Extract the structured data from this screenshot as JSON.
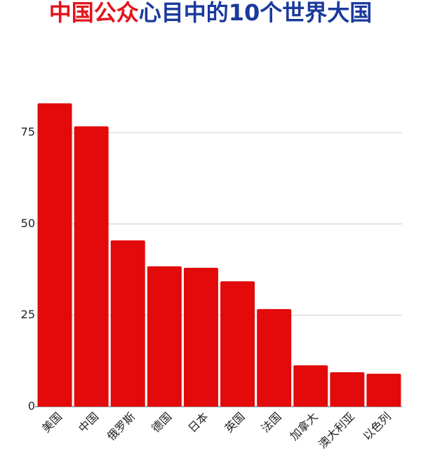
{
  "chart_data": {
    "type": "bar",
    "title_segments": [
      {
        "text": "中国公众",
        "color": "#e3141c"
      },
      {
        "text": "心目中的10个世界大国",
        "color": "#1a3a9c"
      }
    ],
    "categories": [
      "美国",
      "中国",
      "俄罗斯",
      "德国",
      "日本",
      "英国",
      "法国",
      "加拿大",
      "澳大利亚",
      "以色列"
    ],
    "values": [
      83,
      76.7,
      45.5,
      38.4,
      38,
      34.3,
      26.7,
      11.3,
      9.4,
      9
    ],
    "color": "#e20a0a",
    "ylim": [
      0,
      85
    ],
    "yticks": [
      0,
      25,
      50,
      75
    ],
    "grid": true
  }
}
